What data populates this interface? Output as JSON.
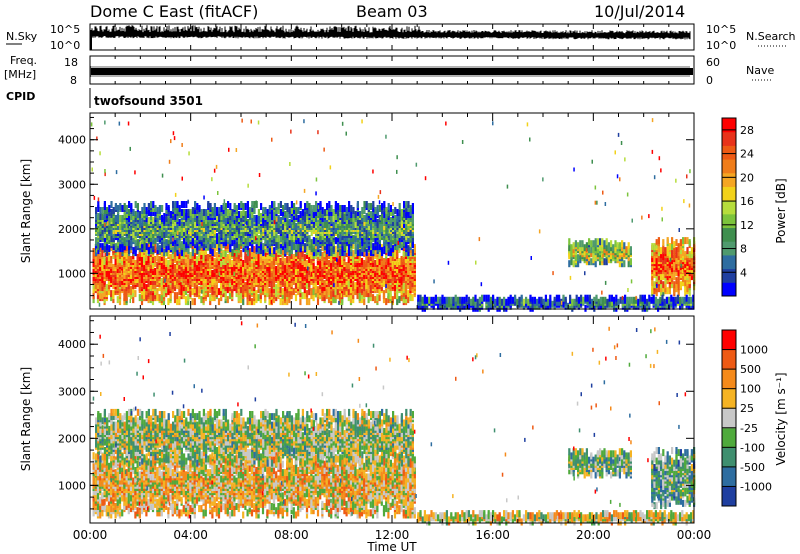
{
  "header": {
    "station": "Dome C East (fitACF)",
    "beam": "Beam 03",
    "date": "10/Jul/2014"
  },
  "panels": {
    "nsky": {
      "label": "N.Sky",
      "tick_hi": "10^5",
      "tick_lo": "10^0",
      "right_label": "N.Search"
    },
    "freq": {
      "label_line1": "Freq.",
      "label_line2": "[MHz]",
      "tick_hi": "18",
      "tick_lo": "8",
      "right_hi": "60",
      "right_lo": "0",
      "right_label": "Nave"
    },
    "cpid": {
      "label": "CPID",
      "program": "twofsound 3501"
    }
  },
  "chart_data": [
    {
      "type": "heatmap",
      "title": "",
      "xlabel": "Time UT",
      "ylabel": "Slant Range [km]",
      "x_ticks": [
        "00:00",
        "04:00",
        "08:00",
        "12:00",
        "16:00",
        "20:00",
        "00:00"
      ],
      "x_range_hours": [
        0,
        24
      ],
      "y_ticks": [
        1000,
        2000,
        3000,
        4000
      ],
      "ylim": [
        200,
        4600
      ],
      "colorbar": {
        "label": "Power [dB]",
        "ticks": [
          "4",
          "8",
          "12",
          "16",
          "20",
          "24",
          "28"
        ],
        "colors": [
          "#0000ff",
          "#1f3fa0",
          "#2e6da0",
          "#4f9a6e",
          "#3f8f4f",
          "#7cc43c",
          "#b6dd3c",
          "#f2d21a",
          "#f5a623",
          "#ef7d1a",
          "#ee5a14",
          "#e8321a",
          "#ff0000"
        ]
      },
      "echo_regions": [
        {
          "t0": 0.1,
          "t1": 12.9,
          "r0": 400,
          "r1": 1700,
          "level": 0.85,
          "note": ""
        },
        {
          "t0": 0.2,
          "t1": 12.8,
          "r0": 1500,
          "r1": 2600,
          "level": 0.35,
          "note": ""
        },
        {
          "t0": 19.0,
          "t1": 21.5,
          "r0": 1250,
          "r1": 1750,
          "level": 0.55,
          "note": ""
        },
        {
          "t0": 22.3,
          "t1": 24.0,
          "r0": 600,
          "r1": 1800,
          "level": 0.85,
          "note": ""
        },
        {
          "t0": 13.0,
          "t1": 24.0,
          "r0": 250,
          "r1": 500,
          "level": 0.25,
          "note": ""
        }
      ]
    },
    {
      "type": "heatmap",
      "title": "",
      "xlabel": "Time UT",
      "ylabel": "Slant Range [km]",
      "x_ticks": [
        "00:00",
        "04:00",
        "08:00",
        "12:00",
        "16:00",
        "20:00",
        "00:00"
      ],
      "x_range_hours": [
        0,
        24
      ],
      "y_ticks": [
        1000,
        2000,
        3000,
        4000
      ],
      "ylim": [
        200,
        4600
      ],
      "colorbar": {
        "label": "Velocity [m s⁻¹]",
        "ticks": [
          "1000",
          "500",
          "100",
          "25",
          "-25",
          "-100",
          "-500",
          "-1000"
        ],
        "colors": [
          "#1f3fa0",
          "#2e6da0",
          "#3f8f6f",
          "#4faa3c",
          "#c8c8c8",
          "#f5b323",
          "#f58a1a",
          "#ee5a14",
          "#ff0000"
        ]
      },
      "echo_regions": [
        {
          "t0": 0.1,
          "t1": 12.9,
          "r0": 400,
          "r1": 1700,
          "level": 0.6,
          "note": ""
        },
        {
          "t0": 0.2,
          "t1": 12.8,
          "r0": 1500,
          "r1": 2600,
          "level": 0.45,
          "note": ""
        },
        {
          "t0": 19.0,
          "t1": 21.5,
          "r0": 1250,
          "r1": 1750,
          "level": 0.4,
          "note": ""
        },
        {
          "t0": 22.3,
          "t1": 24.0,
          "r0": 600,
          "r1": 1800,
          "level": 0.35,
          "note": ""
        },
        {
          "t0": 13.0,
          "t1": 24.0,
          "r0": 250,
          "r1": 450,
          "level": 0.55,
          "note": ""
        }
      ]
    }
  ]
}
